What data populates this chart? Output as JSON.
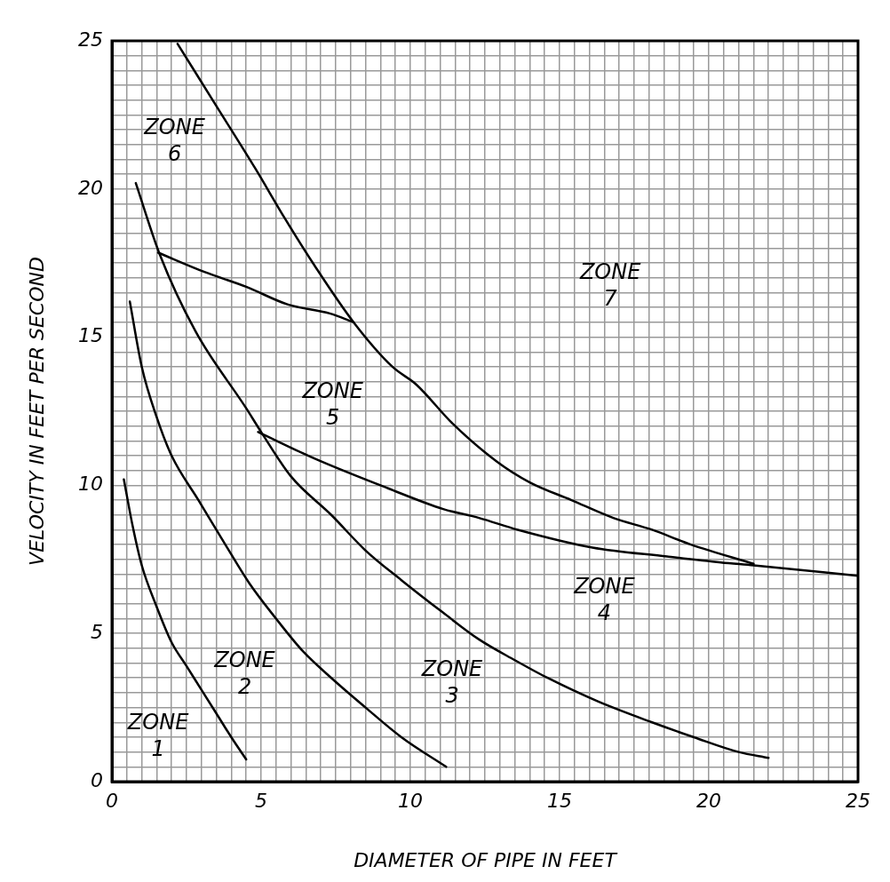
{
  "chart_data": {
    "type": "line",
    "xlabel": "DIAMETER OF PIPE IN FEET",
    "ylabel": "VELOCITY IN FEET PER SECOND",
    "xlim": [
      0,
      25
    ],
    "ylim": [
      0,
      25
    ],
    "xticks": [
      0,
      {
        "value": 0.5,
        "label": null
      },
      {
        "value": 1,
        "label": null
      },
      {
        "value": 1.5,
        "label": null
      },
      {
        "value": 2,
        "label": null
      },
      {
        "value": 2.5,
        "label": null
      },
      {
        "value": 3,
        "label": null
      },
      {
        "value": 3.5,
        "label": null
      },
      {
        "value": 4,
        "label": null
      },
      {
        "value": 4.5,
        "label": null
      },
      5,
      {
        "value": 5.5,
        "label": null
      },
      {
        "value": 6,
        "label": null
      },
      {
        "value": 6.5,
        "label": null
      },
      {
        "value": 7,
        "label": null
      },
      {
        "value": 7.5,
        "label": null
      },
      {
        "value": 8,
        "label": null
      },
      {
        "value": 8.5,
        "label": null
      },
      {
        "value": 9,
        "label": null
      },
      {
        "value": 9.5,
        "label": null
      },
      10,
      {
        "value": 10.5,
        "label": null
      },
      {
        "value": 11,
        "label": null
      },
      {
        "value": 11.5,
        "label": null
      },
      {
        "value": 12,
        "label": null
      },
      {
        "value": 12.5,
        "label": null
      },
      {
        "value": 13,
        "label": null
      },
      {
        "value": 13.5,
        "label": null
      },
      {
        "value": 14,
        "label": null
      },
      {
        "value": 14.5,
        "label": null
      },
      15,
      {
        "value": 15.5,
        "label": null
      },
      {
        "value": 16,
        "label": null
      },
      {
        "value": 16.5,
        "label": null
      },
      {
        "value": 17,
        "label": null
      },
      {
        "value": 17.5,
        "label": null
      },
      {
        "value": 18,
        "label": null
      },
      {
        "value": 18.5,
        "label": null
      },
      {
        "value": 19,
        "label": null
      },
      {
        "value": 19.5,
        "label": null
      },
      20,
      {
        "value": 20.5,
        "label": null
      },
      {
        "value": 21,
        "label": null
      },
      {
        "value": 21.5,
        "label": null
      },
      {
        "value": 22,
        "label": null
      },
      {
        "value": 22.5,
        "label": null
      },
      {
        "value": 23,
        "label": null
      },
      {
        "value": 23.5,
        "label": null
      },
      {
        "value": 24,
        "label": null
      },
      {
        "value": 24.5,
        "label": null
      },
      25
    ],
    "yticks": [
      0,
      {
        "value": 0.5,
        "label": null
      },
      {
        "value": 1,
        "label": null
      },
      {
        "value": 1.5,
        "label": null
      },
      {
        "value": 2,
        "label": null
      },
      {
        "value": 2.5,
        "label": null
      },
      {
        "value": 3,
        "label": null
      },
      {
        "value": 3.5,
        "label": null
      },
      {
        "value": 4,
        "label": null
      },
      {
        "value": 4.5,
        "label": null
      },
      5,
      {
        "value": 5.5,
        "label": null
      },
      {
        "value": 6,
        "label": null
      },
      {
        "value": 6.5,
        "label": null
      },
      {
        "value": 7,
        "label": null
      },
      {
        "value": 7.5,
        "label": null
      },
      {
        "value": 8,
        "label": null
      },
      {
        "value": 8.5,
        "label": null
      },
      {
        "value": 9,
        "label": null
      },
      {
        "value": 9.5,
        "label": null
      },
      10,
      {
        "value": 10.5,
        "label": null
      },
      {
        "value": 11,
        "label": null
      },
      {
        "value": 11.5,
        "label": null
      },
      {
        "value": 12,
        "label": null
      },
      {
        "value": 12.5,
        "label": null
      },
      {
        "value": 13,
        "label": null
      },
      {
        "value": 13.5,
        "label": null
      },
      {
        "value": 14,
        "label": null
      },
      {
        "value": 14.5,
        "label": null
      },
      15,
      {
        "value": 15.5,
        "label": null
      },
      {
        "value": 16,
        "label": null
      },
      {
        "value": 16.5,
        "label": null
      },
      {
        "value": 17,
        "label": null
      },
      {
        "value": 17.5,
        "label": null
      },
      {
        "value": 18,
        "label": null
      },
      {
        "value": 18.5,
        "label": null
      },
      {
        "value": 19,
        "label": null
      },
      {
        "value": 19.5,
        "label": null
      },
      20,
      {
        "value": 20.5,
        "label": null
      },
      {
        "value": 21,
        "label": null
      },
      {
        "value": 21.5,
        "label": null
      },
      {
        "value": 22,
        "label": null
      },
      {
        "value": 22.5,
        "label": null
      },
      {
        "value": 23,
        "label": null
      },
      {
        "value": 23.5,
        "label": null
      },
      {
        "value": 24,
        "label": null
      },
      {
        "value": 24.5,
        "label": null
      },
      25
    ],
    "grid": true,
    "legend": false,
    "marker": "none",
    "line_style": "solid",
    "series": [
      {
        "color": "#000000",
        "x": [
          0.4,
          0.7,
          1.0,
          1.5,
          2.0,
          2.5,
          3.0,
          3.5,
          4.0,
          4.5
        ],
        "values": [
          10.2,
          8.6,
          7.3,
          5.9,
          4.7,
          3.9,
          3.1,
          2.3,
          1.5,
          0.75
        ]
      },
      {
        "color": "#000000",
        "x": [
          0.6,
          1.0,
          1.5,
          2.0,
          2.9,
          3.8,
          4.6,
          5.5,
          6.4,
          7.35,
          8.5,
          9.7,
          11.2
        ],
        "values": [
          16.2,
          14.0,
          12.3,
          11.0,
          9.5,
          8.0,
          6.7,
          5.5,
          4.4,
          3.5,
          2.5,
          1.5,
          0.5
        ]
      },
      {
        "color": "#000000",
        "x": [
          0.8,
          1.6,
          2.8,
          4.5,
          5.0,
          6.0,
          7.35,
          8.5,
          9.7,
          11.1,
          12.3,
          13.5,
          14.6,
          16.3,
          18.1,
          19.5,
          21.0,
          22.0
        ],
        "values": [
          20.2,
          17.8,
          15.2,
          12.6,
          11.8,
          10.3,
          9.0,
          7.8,
          6.8,
          5.7,
          4.8,
          4.1,
          3.5,
          2.7,
          2.0,
          1.5,
          1.0,
          0.8
        ]
      },
      {
        "color": "#000000",
        "x": [
          2.2,
          3.5,
          4.8,
          5.8,
          6.8,
          8.1,
          9.4,
          10.2,
          11.4,
          12.9,
          14.0,
          15.4,
          16.8,
          18.1,
          19.4,
          21.5
        ],
        "values": [
          24.9,
          22.8,
          20.7,
          19.0,
          17.4,
          15.5,
          14.0,
          13.4,
          12.1,
          10.8,
          10.1,
          9.5,
          8.9,
          8.5,
          8.0,
          7.35
        ]
      },
      {
        "color": "#000000",
        "x": [
          1.55,
          3.1,
          4.5,
          5.9,
          7.3,
          8.1
        ],
        "values": [
          17.85,
          17.2,
          16.7,
          16.1,
          15.8,
          15.5
        ]
      },
      {
        "color": "#000000",
        "x": [
          4.9,
          6.8,
          9.25,
          11.1,
          12.3,
          13.6,
          16.1,
          18.6,
          20.4,
          21.5,
          25.0
        ],
        "values": [
          11.8,
          10.9,
          9.9,
          9.2,
          8.9,
          8.5,
          7.9,
          7.6,
          7.4,
          7.3,
          6.95
        ]
      }
    ],
    "annotations": [
      "ZONE\n1",
      "ZONE\n2",
      "ZONE\n3",
      "ZONE\n4",
      "ZONE\n5",
      "ZONE\n6",
      "ZONE\n7"
    ]
  }
}
